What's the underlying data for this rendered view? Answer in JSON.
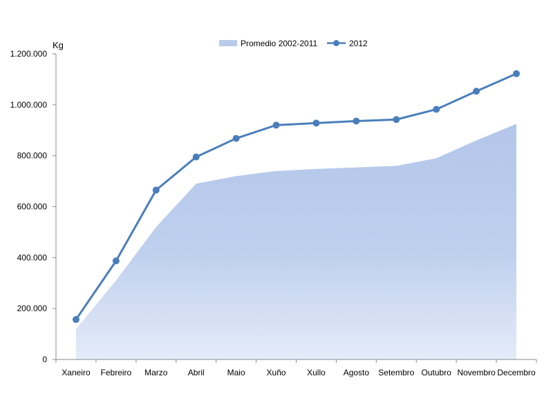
{
  "chart_data": {
    "type": "line",
    "ylabel": "Kg",
    "categories": [
      "Xaneiro",
      "Febreiro",
      "Marzo",
      "Abril",
      "Maio",
      "Xuño",
      "Xullo",
      "Agosto",
      "Setembro",
      "Outubro",
      "Novembro",
      "Decembro"
    ],
    "ylim": [
      0,
      1200000
    ],
    "yticks": [
      0,
      200000,
      400000,
      600000,
      800000,
      1000000,
      1200000
    ],
    "ytick_labels": [
      "0",
      "200.000",
      "400.000",
      "600.000",
      "800.000",
      "1.000.000",
      "1.200.000"
    ],
    "legend_position": "top-center",
    "grid": false,
    "series": [
      {
        "name": "Promedio 2002-2011",
        "type": "area",
        "color": "#B9CBEB",
        "values": [
          120000,
          310000,
          520000,
          690000,
          720000,
          740000,
          748000,
          754000,
          760000,
          790000,
          860000,
          925000
        ]
      },
      {
        "name": "2012",
        "type": "line",
        "color": "#4A7EBB",
        "values": [
          157000,
          387000,
          665000,
          795000,
          868000,
          920000,
          928000,
          936000,
          942000,
          982000,
          1053000,
          1122000
        ]
      }
    ]
  }
}
